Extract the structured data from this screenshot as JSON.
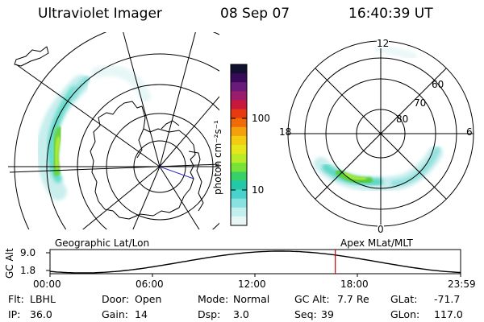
{
  "header": {
    "instrument": "Ultraviolet Imager",
    "date": "08 Sep 07",
    "time": "16:40:39 UT"
  },
  "colorbar": {
    "unit_label": "photon cm⁻²s⁻¹",
    "ticks": [
      "100",
      "10"
    ],
    "colors": [
      "#101030",
      "#3a0a5a",
      "#6a1a7a",
      "#9a1c6a",
      "#c8183c",
      "#e83a10",
      "#f06a0a",
      "#f4a00a",
      "#f2cc10",
      "#e6e61a",
      "#b8ec28",
      "#78e238",
      "#38d068",
      "#22c8a8",
      "#4ad2cc",
      "#88e2e0",
      "#c2eeee",
      "#e8f6f6"
    ]
  },
  "polar_plot": {
    "labels": {
      "top": "12",
      "bottom": "0",
      "left": "18",
      "right": "6",
      "ring_60": "60",
      "ring_70": "70",
      "ring_80": "80"
    }
  },
  "timeline": {
    "left_title": "Geographic Lat/Lon",
    "right_title": "Apex MLat/MLT",
    "y_axis_label": "GC Alt",
    "y_ticks": [
      "9.0",
      "1.8"
    ],
    "x_ticks": [
      "00:00",
      "06:00",
      "12:00",
      "18:00",
      "23:59"
    ],
    "current_time_fraction": 0.6949,
    "marker_color": "#cc0000"
  },
  "footer": {
    "row1": [
      {
        "label": "Flt:",
        "value": "LBHL"
      },
      {
        "label": "Door:",
        "value": "Open"
      },
      {
        "label": "Mode:",
        "value": "Normal"
      },
      {
        "label": "GC Alt:",
        "value": "7.7 Re"
      },
      {
        "label": "GLat:",
        "value": "-71.7"
      }
    ],
    "row2": [
      {
        "label": "IP:",
        "value": "36.0"
      },
      {
        "label": "Gain:",
        "value": "14"
      },
      {
        "label": "Dsp:",
        "value": "3.0"
      },
      {
        "label": "Seq:",
        "value": "39"
      },
      {
        "label": "GLon:",
        "value": "117.0"
      }
    ]
  }
}
